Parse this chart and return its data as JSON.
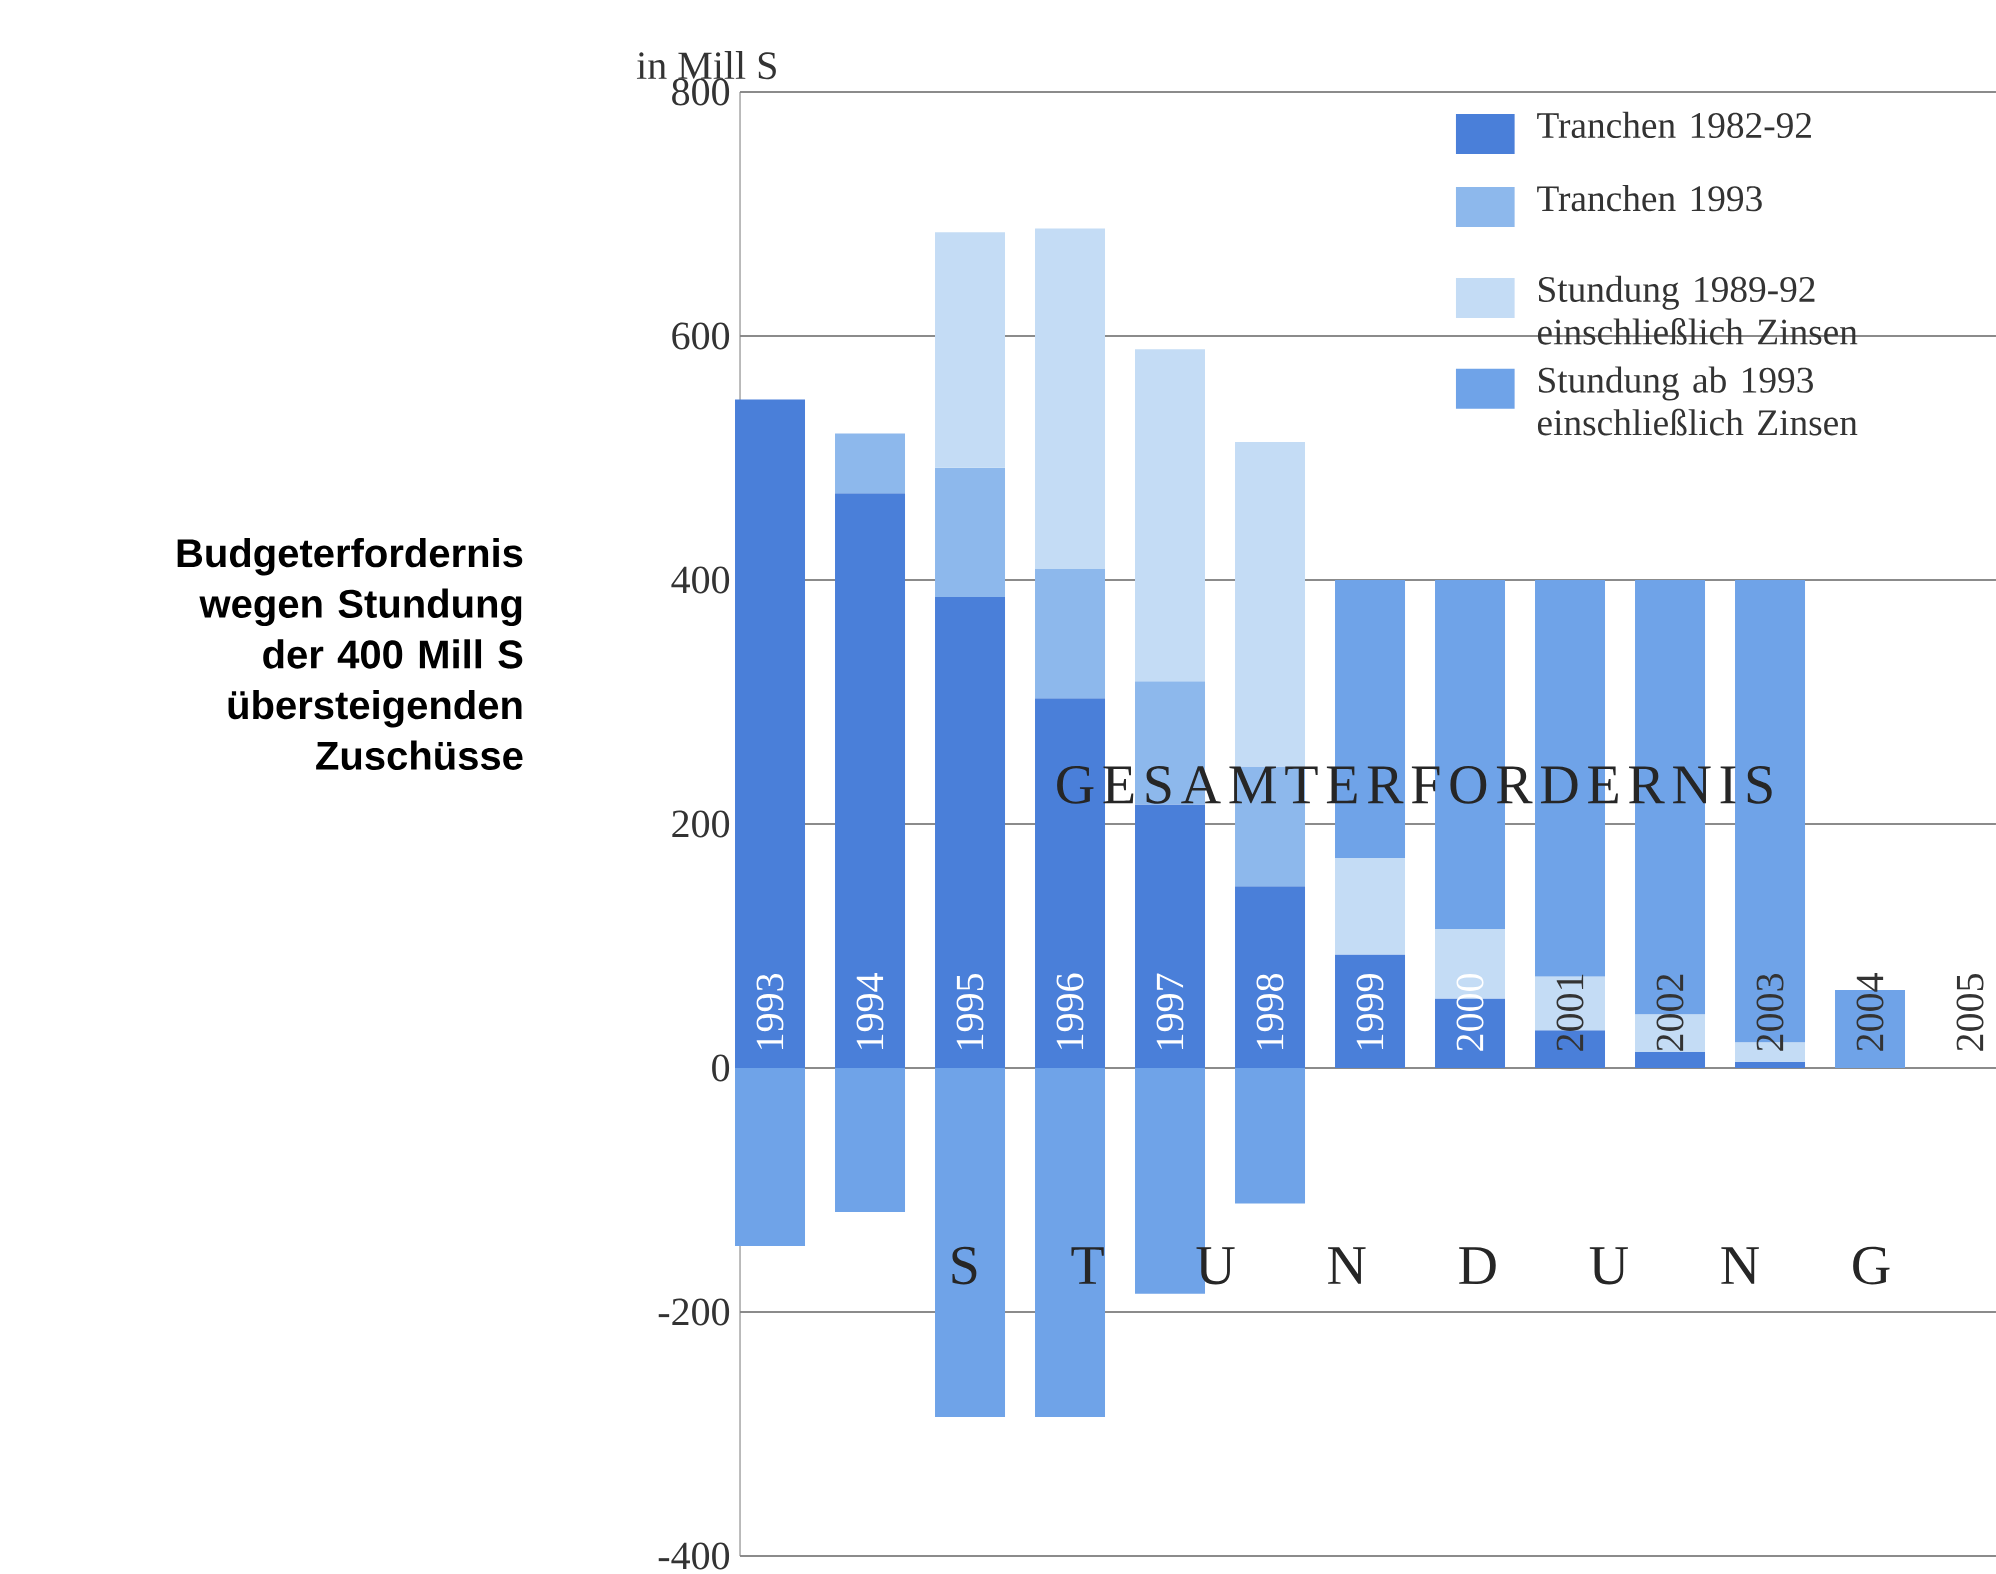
{
  "chart_data": {
    "type": "bar",
    "stacked": true,
    "ylabel": "in Mill S",
    "categories": [
      "1993",
      "1994",
      "1995",
      "1996",
      "1997",
      "1998",
      "1999",
      "2000",
      "2001",
      "2002",
      "2003",
      "2004",
      "2005"
    ],
    "series": [
      {
        "name": "Tranchen 1982-92",
        "color": "#4a7fd9",
        "values": [
          548,
          471,
          386,
          303,
          216,
          149,
          93,
          57,
          31,
          13,
          5,
          0,
          0
        ]
      },
      {
        "name": "Tranchen 1993",
        "color": "#8db8ec",
        "values": [
          0,
          49,
          106,
          106,
          101,
          98,
          0,
          0,
          0,
          0,
          0,
          0,
          0
        ]
      },
      {
        "name": "Stundung 1989-92 einschließlich Zinsen",
        "color": "#c4dcf5",
        "values": [
          0,
          0,
          193,
          279,
          272,
          266,
          79,
          57,
          44,
          31,
          16,
          0,
          0
        ]
      },
      {
        "name": "Stundung ab 1993 einschließlich Zinsen",
        "color": "#6fa3e8",
        "values": [
          -146,
          -118,
          -286,
          -286,
          -185,
          -111,
          228,
          286,
          325,
          356,
          379,
          64,
          0
        ]
      }
    ],
    "ylim": [
      -400,
      800
    ],
    "yticks": [
      {
        "value": -400,
        "label": "-400"
      },
      {
        "value": -200,
        "label": "-200"
      },
      0,
      200,
      400,
      600,
      800
    ],
    "grid": "y",
    "legend": "top right",
    "annotations": [
      "GESAMTERFORDERNIS",
      "S T U N D U N G",
      "Budgeterfordernis wegen Stundung der 400 Mill S übersteigenden Zuschüsse"
    ]
  }
}
